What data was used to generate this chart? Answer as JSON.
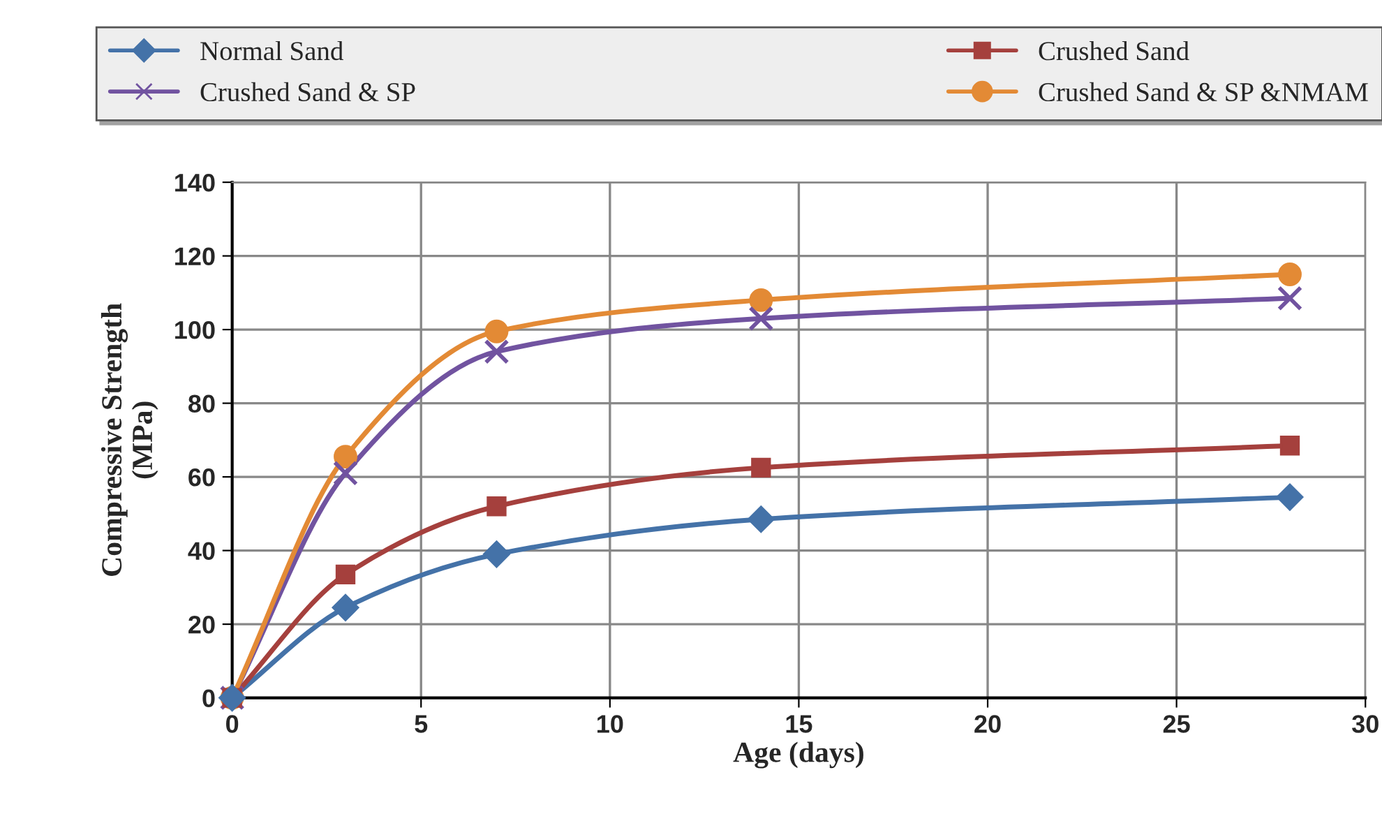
{
  "chart_data": {
    "type": "line",
    "xlabel": "Age (days)",
    "ylabel": "Compressive Strength\n(MPa)",
    "x": [
      0,
      3,
      7,
      14,
      28
    ],
    "series": [
      {
        "name": "Normal Sand",
        "color": "#4472a8",
        "marker": "diamond",
        "values": [
          0,
          24.5,
          39,
          48.5,
          54.5
        ]
      },
      {
        "name": "Crushed Sand",
        "color": "#a5403d",
        "marker": "square",
        "values": [
          0,
          33.5,
          52,
          62.5,
          68.5
        ]
      },
      {
        "name": "Crushed Sand & SP",
        "color": "#7153a0",
        "marker": "cross",
        "values": [
          0,
          61,
          94,
          103,
          108.5
        ]
      },
      {
        "name": "Crushed Sand & SP &NMAM",
        "color": "#e38a35",
        "marker": "circle",
        "values": [
          0,
          65.5,
          99.5,
          108,
          115
        ]
      }
    ],
    "xlim": [
      0,
      30
    ],
    "xticks": [
      0,
      5,
      10,
      15,
      20,
      25,
      30
    ],
    "ylim": [
      0,
      140
    ],
    "yticks": [
      0,
      20,
      40,
      60,
      80,
      100,
      120,
      140
    ],
    "grid": true,
    "legend": "top",
    "line_style": "solid"
  }
}
